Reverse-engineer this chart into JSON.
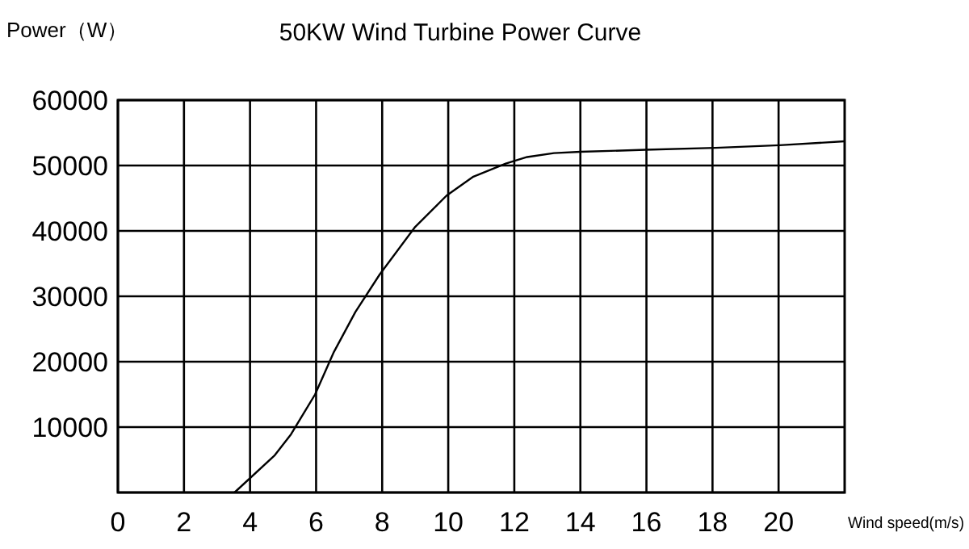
{
  "chart_data": {
    "type": "line",
    "title": "50KW Wind Turbine Power Curve",
    "ylabel": "Power（W）",
    "xlabel": "Wind speed(m/s)",
    "x": [
      3.53,
      4.75,
      5.24,
      5.97,
      6.54,
      7.19,
      7.92,
      8.98,
      9.95,
      10.76,
      11.74,
      12.39,
      13.2,
      14.0,
      15.97,
      18.08,
      20.03,
      22
    ],
    "series": [
      {
        "color": "#000000",
        "values": [
          0,
          5700,
          8900,
          15000,
          21500,
          27600,
          33300,
          40500,
          45400,
          48300,
          50300,
          51300,
          51900,
          52100,
          52400,
          52700,
          53100,
          53700
        ]
      }
    ],
    "xlim": [
      0,
      22
    ],
    "xticks": [
      0,
      2,
      4,
      6,
      8,
      10,
      12,
      14,
      16,
      18,
      20
    ],
    "ylim": [
      0,
      60000
    ],
    "yticks": [
      {
        "value": 0,
        "label": null
      },
      10000,
      20000,
      30000,
      40000,
      50000,
      60000
    ],
    "grid": true,
    "marker": "none",
    "line_style": "solid"
  }
}
